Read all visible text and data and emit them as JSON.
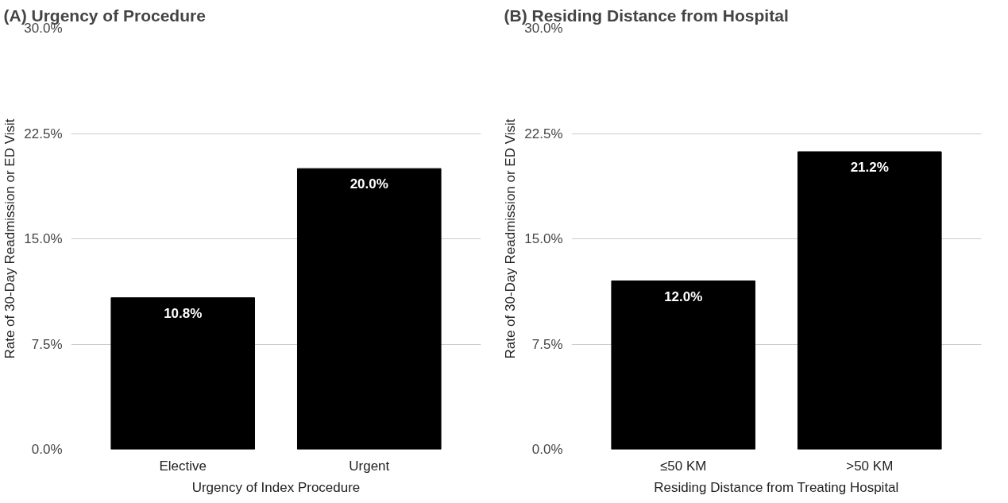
{
  "chart_data": [
    {
      "type": "bar",
      "title": "(A) Urgency of Procedure",
      "xlabel": "Urgency of Index Procedure",
      "ylabel": "Rate of 30-Day Readmission or ED Visit",
      "categories": [
        "Elective",
        "Urgent"
      ],
      "values": [
        10.8,
        20.0
      ],
      "value_labels": [
        "10.8%",
        "20.0%"
      ],
      "color": "#000000",
      "ylim": [
        0,
        30
      ],
      "yticks": [
        {
          "value": 0,
          "label": "0.0%"
        },
        {
          "value": 7.5,
          "label": "7.5%"
        },
        {
          "value": 15,
          "label": "15.0%"
        },
        {
          "value": 22.5,
          "label": "22.5%"
        },
        {
          "value": 30,
          "label": "30.0%"
        }
      ],
      "grid": "y"
    },
    {
      "type": "bar",
      "title": "(B) Residing Distance from Hospital",
      "xlabel": "Residing Distance from Treating Hospital",
      "ylabel": "Rate of 30-Day Readmission or ED Visit",
      "categories": [
        "≤50 KM",
        ">50 KM"
      ],
      "values": [
        12.0,
        21.2
      ],
      "value_labels": [
        "12.0%",
        "21.2%"
      ],
      "color": "#000000",
      "ylim": [
        0,
        30
      ],
      "yticks": [
        {
          "value": 0,
          "label": "0.0%"
        },
        {
          "value": 7.5,
          "label": "7.5%"
        },
        {
          "value": 15,
          "label": "15.0%"
        },
        {
          "value": 22.5,
          "label": "22.5%"
        },
        {
          "value": 30,
          "label": "30.0%"
        }
      ],
      "grid": "y"
    }
  ]
}
